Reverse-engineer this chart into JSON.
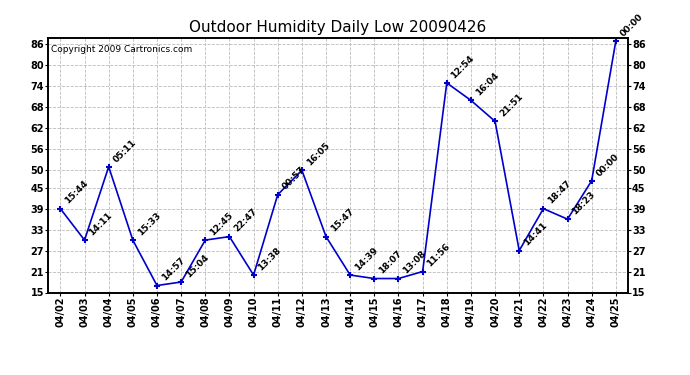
{
  "title": "Outdoor Humidity Daily Low 20090426",
  "copyright": "Copyright 2009 Cartronics.com",
  "x_labels": [
    "04/02",
    "04/03",
    "04/04",
    "04/05",
    "04/06",
    "04/07",
    "04/08",
    "04/09",
    "04/10",
    "04/11",
    "04/12",
    "04/13",
    "04/14",
    "04/15",
    "04/16",
    "04/17",
    "04/18",
    "04/19",
    "04/20",
    "04/21",
    "04/22",
    "04/23",
    "04/24",
    "04/25"
  ],
  "y_values": [
    39,
    30,
    51,
    30,
    17,
    18,
    30,
    31,
    20,
    43,
    50,
    31,
    20,
    19,
    19,
    21,
    75,
    70,
    64,
    27,
    39,
    36,
    47,
    87
  ],
  "time_labels": [
    "15:44",
    "14:11",
    "05:11",
    "15:33",
    "14:57",
    "15:04",
    "12:45",
    "22:47",
    "13:38",
    "00:57",
    "16:05",
    "15:47",
    "14:39",
    "18:07",
    "13:08",
    "11:56",
    "12:54",
    "16:04",
    "21:51",
    "14:41",
    "18:47",
    "18:23",
    "00:00",
    "00:00"
  ],
  "ylim_min": 15,
  "ylim_max": 88,
  "yticks": [
    15,
    21,
    27,
    33,
    39,
    45,
    50,
    56,
    62,
    68,
    74,
    80,
    86
  ],
  "line_color": "#0000cc",
  "background_color": "#ffffff",
  "grid_color": "#bbbbbb",
  "title_fontsize": 11,
  "label_fontsize": 6.5,
  "tick_fontsize": 7,
  "copyright_fontsize": 6.5
}
